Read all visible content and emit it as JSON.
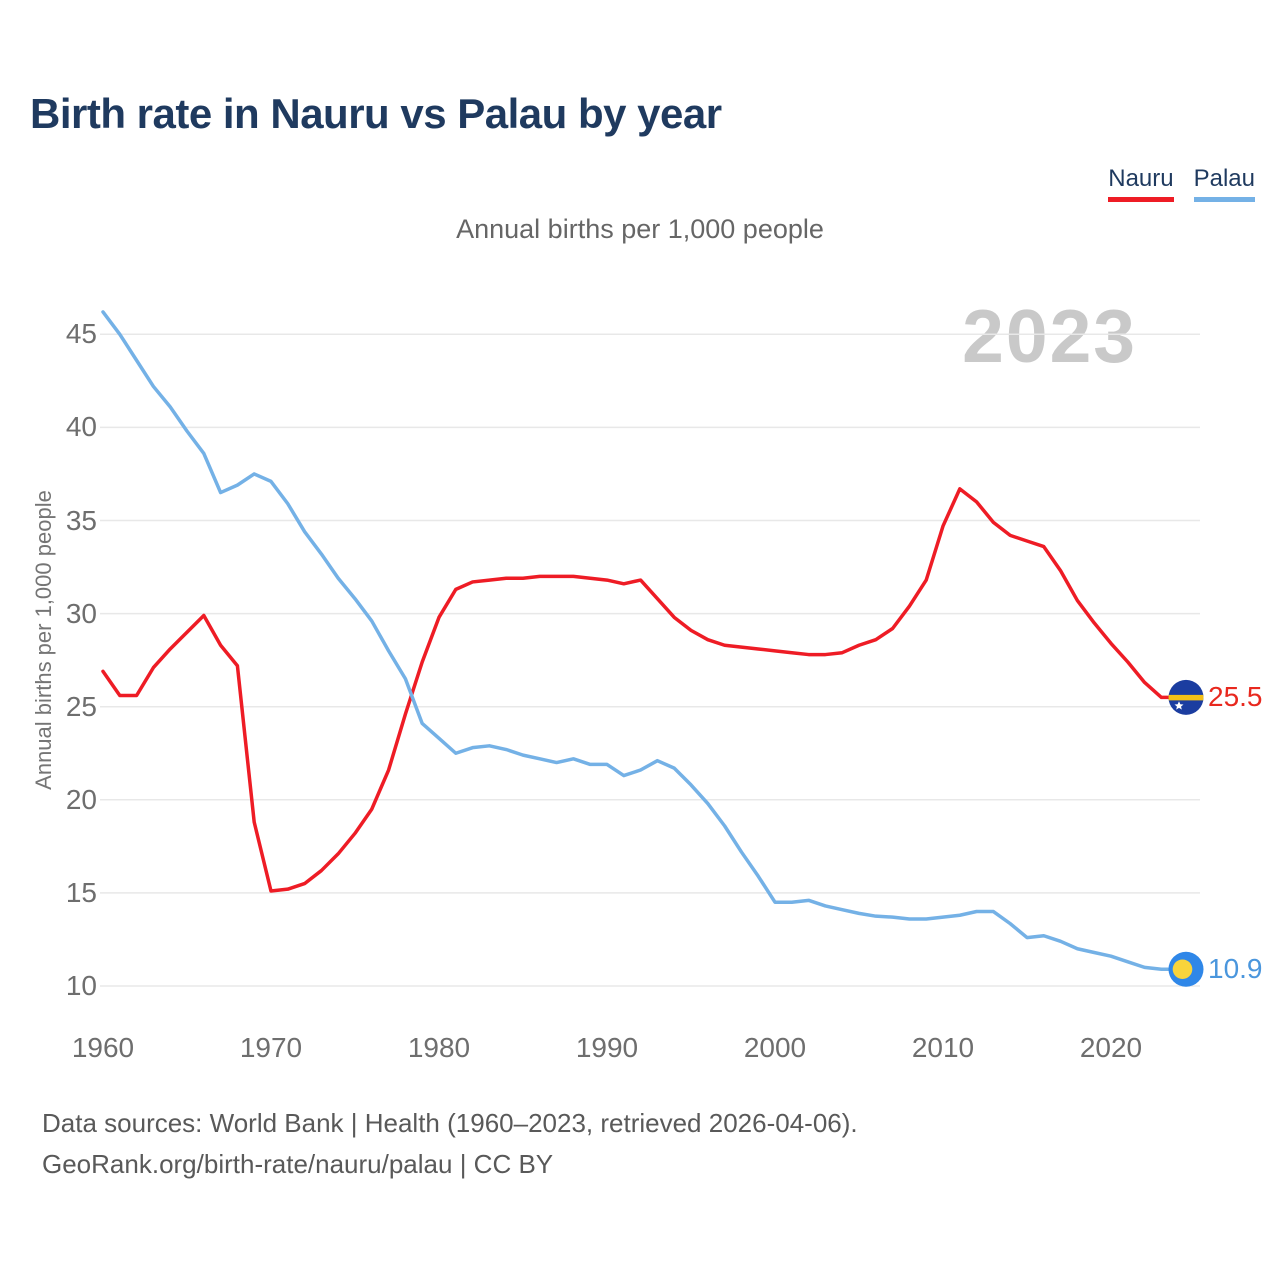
{
  "title": "Birth rate in Nauru vs Palau by year",
  "subtitle": "Annual births per 1,000 people",
  "watermark": "2023",
  "legend": [
    {
      "label": "Nauru",
      "color": "#ee1c25"
    },
    {
      "label": "Palau",
      "color": "#74b1e6"
    }
  ],
  "y_axis": {
    "label": "Annual births per 1,000 people",
    "ticks": [
      45,
      40,
      35,
      30,
      25,
      20,
      15,
      10
    ]
  },
  "x_axis": {
    "ticks": [
      1960,
      1970,
      1980,
      1990,
      2000,
      2010,
      2020
    ]
  },
  "end_labels": {
    "nauru": {
      "text": "25.5",
      "color": "#e8281e"
    },
    "palau": {
      "text": "10.9",
      "color": "#4a96dd"
    }
  },
  "footer": {
    "line1": "Data sources: World Bank | Health (1960–2023, retrieved 2026-04-06).",
    "line2": "GeoRank.org/birth-rate/nauru/palau | CC BY"
  },
  "colors": {
    "title": "#1f3a5f",
    "axis_text": "#6e6e6e",
    "grid": "#e8e8e8",
    "watermark": "#c9c9c9",
    "footer": "#595959"
  },
  "flags": {
    "nauru": {
      "bg": "#1b3da0",
      "stripe": "#f3c018",
      "star": "#ffffff"
    },
    "palau": {
      "bg": "#2f87e8",
      "disc": "#f9d43b"
    }
  },
  "chart_data": {
    "type": "line",
    "title": "Birth rate in Nauru vs Palau by year",
    "xlabel": "",
    "ylabel": "Annual births per 1,000 people",
    "xlim": [
      1960,
      2023
    ],
    "ylim": [
      8,
      47
    ],
    "grid": "horizontal",
    "legend_position": "top-right",
    "x": [
      1960,
      1961,
      1962,
      1963,
      1964,
      1965,
      1966,
      1967,
      1968,
      1969,
      1970,
      1971,
      1972,
      1973,
      1974,
      1975,
      1976,
      1977,
      1978,
      1979,
      1980,
      1981,
      1982,
      1983,
      1984,
      1985,
      1986,
      1987,
      1988,
      1989,
      1990,
      1991,
      1992,
      1993,
      1994,
      1995,
      1996,
      1997,
      1998,
      1999,
      2000,
      2001,
      2002,
      2003,
      2004,
      2005,
      2006,
      2007,
      2008,
      2009,
      2010,
      2011,
      2012,
      2013,
      2014,
      2015,
      2016,
      2017,
      2018,
      2019,
      2020,
      2021,
      2022,
      2023
    ],
    "series": [
      {
        "name": "Nauru",
        "color": "#ee1c25",
        "values": [
          26.9,
          25.6,
          25.6,
          27.1,
          28.1,
          29.0,
          29.9,
          28.3,
          27.2,
          18.8,
          15.1,
          15.2,
          15.5,
          16.2,
          17.1,
          18.2,
          19.5,
          21.6,
          24.6,
          27.4,
          29.8,
          31.3,
          31.7,
          31.8,
          31.9,
          31.9,
          32.0,
          32.0,
          32.0,
          31.9,
          31.8,
          31.6,
          31.8,
          30.8,
          29.8,
          29.1,
          28.6,
          28.3,
          28.2,
          28.1,
          28.0,
          27.9,
          27.8,
          27.8,
          27.9,
          28.3,
          28.6,
          29.2,
          30.4,
          31.8,
          34.7,
          36.7,
          36.0,
          34.9,
          34.2,
          33.9,
          33.6,
          32.3,
          30.7,
          29.5,
          28.4,
          27.4,
          26.3,
          25.5
        ]
      },
      {
        "name": "Palau",
        "color": "#74b1e6",
        "values": [
          46.2,
          45.0,
          43.6,
          42.2,
          41.1,
          39.8,
          38.6,
          36.5,
          36.9,
          37.5,
          37.1,
          35.9,
          34.4,
          33.2,
          31.9,
          30.8,
          29.6,
          28.0,
          26.5,
          24.1,
          23.3,
          22.5,
          22.8,
          22.9,
          22.7,
          22.4,
          22.2,
          22.0,
          22.2,
          21.9,
          21.9,
          21.3,
          21.6,
          22.1,
          21.7,
          20.8,
          19.8,
          18.6,
          17.2,
          15.9,
          14.5,
          14.5,
          14.6,
          14.3,
          14.1,
          13.9,
          13.75,
          13.7,
          13.6,
          13.6,
          13.7,
          13.8,
          14.0,
          14.0,
          13.35,
          12.6,
          12.7,
          12.4,
          12.0,
          11.8,
          11.6,
          11.3,
          11.0,
          10.9
        ]
      }
    ]
  }
}
